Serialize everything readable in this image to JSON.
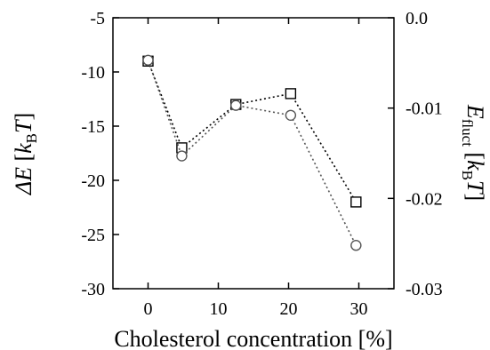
{
  "chart_data": {
    "type": "line",
    "x": [
      0,
      4.8,
      12.5,
      20.3,
      29.6
    ],
    "series": [
      {
        "axis": "left",
        "marker": "square",
        "line": "dotted",
        "values": [
          -9.0,
          -17.0,
          -13.0,
          -12.0,
          -22.0
        ]
      },
      {
        "axis": "right",
        "marker": "circle",
        "line": "dotted",
        "color": "#555555",
        "values": [
          -0.0047,
          -0.0153,
          -0.0097,
          -0.0108,
          -0.0252
        ]
      }
    ],
    "xlim": [
      -5,
      35
    ],
    "ylim_left": [
      -30,
      -5
    ],
    "ylim_right": [
      -0.03,
      0.0
    ],
    "xticks": [
      0,
      10,
      20,
      30
    ],
    "xtick_labels": [
      "0",
      "10",
      "20",
      "30"
    ],
    "yticks_left": [
      -5,
      -10,
      -15,
      -20,
      -25,
      -30
    ],
    "ytick_left_labels": [
      "-5",
      "-10",
      "-15",
      "-20",
      "-25",
      "-30"
    ],
    "yticks_right": [
      0.0,
      -0.01,
      -0.02,
      -0.03
    ],
    "ytick_right_labels": [
      "0.0",
      "-0.01",
      "-0.02",
      "-0.03"
    ],
    "xlabel": "Cholesterol concentration [%]",
    "ylabel_left": {
      "symbol": "ΔE",
      "open": " [",
      "k": "k",
      "sub": "B",
      "t": "T",
      "close": "]"
    },
    "ylabel_right": {
      "e": "E",
      "sub": "fluct",
      "open": " [",
      "k": "k",
      "subk": "B",
      "t": "T",
      "close": "]"
    },
    "grid": false,
    "legend": "none"
  }
}
